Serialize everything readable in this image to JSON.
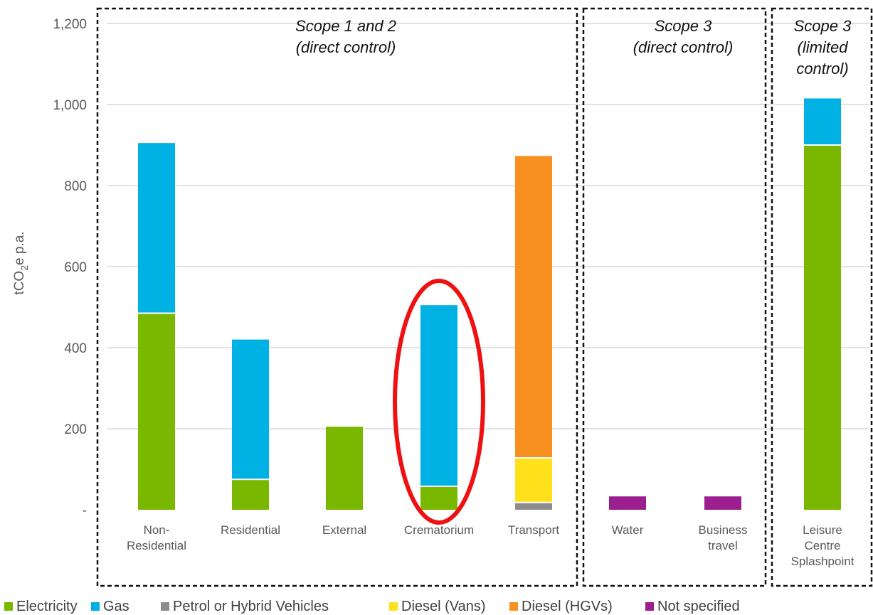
{
  "chart_data": {
    "type": "bar",
    "stacked": true,
    "ylabel": "tCO₂e p.a.",
    "ylim": [
      0,
      1200
    ],
    "yticks": [
      0,
      200,
      400,
      600,
      800,
      1000,
      1200
    ],
    "ytick_labels": [
      "-",
      "200",
      "400",
      "600",
      "800",
      "1,000",
      "1,200"
    ],
    "grid": true,
    "legend_position": "bottom",
    "categories": [
      [
        "Non-",
        "Residential"
      ],
      [
        "Residential"
      ],
      [
        "External"
      ],
      [
        "Crematorium"
      ],
      [
        "Transport"
      ],
      [
        "Water"
      ],
      [
        "Business",
        "travel"
      ],
      [
        "Leisure",
        "Centre",
        "Splashpoint"
      ]
    ],
    "series": [
      {
        "name": "Electricity",
        "color": "#7AB800",
        "values": [
          485,
          75,
          205,
          58,
          0,
          0,
          0,
          900
        ]
      },
      {
        "name": "Gas",
        "color": "#00B2E3",
        "values": [
          420,
          345,
          0,
          447,
          0,
          0,
          0,
          115
        ]
      },
      {
        "name": "Petrol or Hybrid Vehicles",
        "color": "#8C8C8C",
        "values": [
          0,
          0,
          0,
          0,
          18,
          0,
          0,
          0
        ]
      },
      {
        "name": "Diesel (Vans)",
        "color": "#FFE01A",
        "values": [
          0,
          0,
          0,
          0,
          110,
          0,
          0,
          0
        ]
      },
      {
        "name": "Diesel (HGVs)",
        "color": "#F7901E",
        "values": [
          0,
          0,
          0,
          0,
          745,
          0,
          0,
          0
        ]
      },
      {
        "name": "Not specified",
        "color": "#9C1F8F",
        "values": [
          0,
          0,
          0,
          0,
          0,
          33,
          33,
          0
        ]
      }
    ],
    "groups": [
      {
        "label": [
          "Scope 1 and 2",
          "(direct control)"
        ],
        "categories": [
          0,
          4
        ]
      },
      {
        "label": [
          "Scope 3",
          "(direct control)"
        ],
        "categories": [
          5,
          6
        ]
      },
      {
        "label": [
          "Scope 3",
          "(limited",
          "control)"
        ],
        "categories": [
          7,
          7
        ]
      }
    ],
    "highlight": {
      "shape": "ellipse",
      "color": "#EE1111",
      "category": 3
    }
  }
}
